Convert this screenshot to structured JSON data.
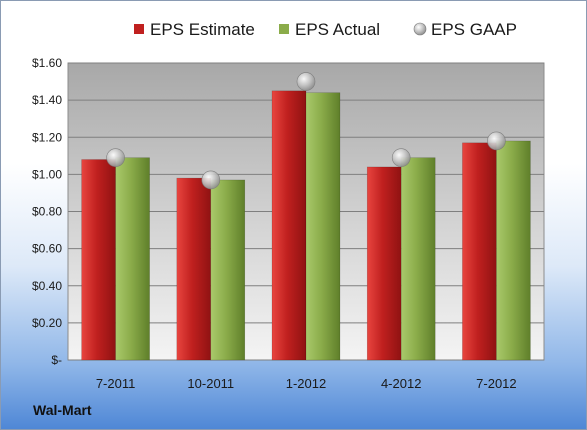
{
  "chart_data": {
    "type": "bar",
    "categories": [
      "7-2011",
      "10-2011",
      "1-2012",
      "4-2012",
      "7-2012"
    ],
    "series": [
      {
        "name": "EPS Estimate",
        "kind": "bar",
        "color": "#c0201f",
        "values": [
          1.08,
          0.98,
          1.45,
          1.04,
          1.17
        ]
      },
      {
        "name": "EPS Actual",
        "kind": "bar",
        "color": "#8bac4a",
        "values": [
          1.09,
          0.97,
          1.44,
          1.09,
          1.18
        ]
      },
      {
        "name": "EPS GAAP",
        "kind": "marker",
        "color": "#a6a6a6",
        "values": [
          1.09,
          0.97,
          1.5,
          1.09,
          1.18
        ]
      }
    ],
    "ylim": [
      0,
      1.6
    ],
    "yticks": [
      0,
      0.2,
      0.4,
      0.6,
      0.8,
      1.0,
      1.2,
      1.4,
      1.6
    ],
    "ytick_labels": [
      "$-",
      "$0.20",
      "$0.40",
      "$0.60",
      "$0.80",
      "$1.00",
      "$1.20",
      "$1.40",
      "$1.60"
    ],
    "grid": true,
    "legend_position": "top",
    "title": "",
    "xlabel": "",
    "ylabel": ""
  },
  "footer": {
    "company": "Wal-Mart"
  }
}
